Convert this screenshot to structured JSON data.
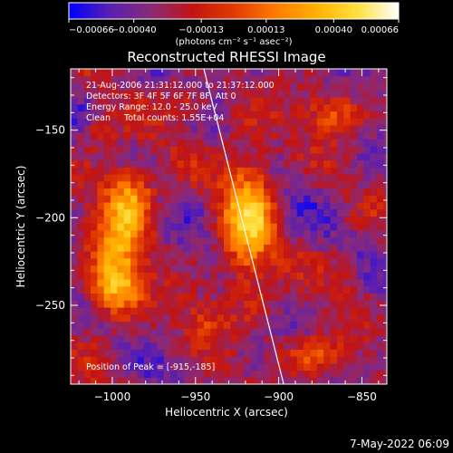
{
  "chart_data": {
    "type": "heatmap",
    "title": "Reconstructed RHESSI Image",
    "xlabel": "Heliocentric X (arcsec)",
    "ylabel": "Heliocentric Y (arcsec)",
    "xlim": [
      -1025,
      -835
    ],
    "ylim": [
      -295,
      -115
    ],
    "x_ticks": [
      -1000,
      -950,
      -900,
      -850
    ],
    "y_ticks": [
      -250,
      -200,
      -150
    ],
    "x_tick_labels": [
      "−1000",
      "−950",
      "−900",
      "−850"
    ],
    "y_tick_labels": [
      "−250",
      "−200",
      "−150"
    ],
    "colorbar": {
      "min": -0.00066,
      "max": 0.00066,
      "ticks": [
        -0.00066,
        -0.0004,
        -0.00013,
        0.00013,
        0.0004,
        0.00066
      ],
      "tick_labels": [
        "−0.00066",
        "−0.00040",
        "−0.00013",
        "0.00013",
        "0.00040",
        "0.00066"
      ],
      "units": "(photons cm⁻² s⁻¹ asec⁻²)",
      "colors": [
        "#0000ff",
        "#5a1fb0",
        "#8a2a78",
        "#c21414",
        "#e03a00",
        "#ff7a00",
        "#ffb000",
        "#ffe040",
        "#ffffff"
      ]
    },
    "annotations": {
      "time": "21-Aug-2006 21:31:12.000 to 21:37:12.000",
      "detectors": "Detectors: 3F 4F 5F 6F 7F 8F, Att 0",
      "energy": "Energy Range: 12.0 - 25.0 keV",
      "method": "Clean     Total counts: 1.55E+04",
      "peak": "Position of Peak = [-915,-185]"
    },
    "limb_line": {
      "x": [
        -945,
        -897
      ],
      "y": [
        -115,
        -295
      ]
    },
    "sources": [
      {
        "x": -918,
        "y": -200,
        "sx": 11,
        "sy": 30,
        "amp": 0.00066
      },
      {
        "x": -995,
        "y": -215,
        "sx": 12,
        "sy": 24,
        "amp": 0.00052
      },
      {
        "x": -1000,
        "y": -240,
        "sx": 10,
        "sy": 10,
        "amp": 0.00048
      },
      {
        "x": -988,
        "y": -185,
        "sx": 10,
        "sy": 12,
        "amp": 0.0004
      },
      {
        "x": -868,
        "y": -140,
        "sx": 12,
        "sy": 9,
        "amp": 0.0004
      },
      {
        "x": -955,
        "y": -135,
        "sx": 9,
        "sy": 7,
        "amp": 0.0003
      },
      {
        "x": -1008,
        "y": -150,
        "sx": 8,
        "sy": 8,
        "amp": 0.00026
      },
      {
        "x": -880,
        "y": -278,
        "sx": 16,
        "sy": 8,
        "amp": 0.00032
      },
      {
        "x": -945,
        "y": -258,
        "sx": 10,
        "sy": 9,
        "amp": 0.00028
      },
      {
        "x": -860,
        "y": -230,
        "sx": 9,
        "sy": 9,
        "amp": 0.0002
      }
    ],
    "grid": false
  },
  "footer": {
    "stamp": "7-May-2022 06:09"
  }
}
